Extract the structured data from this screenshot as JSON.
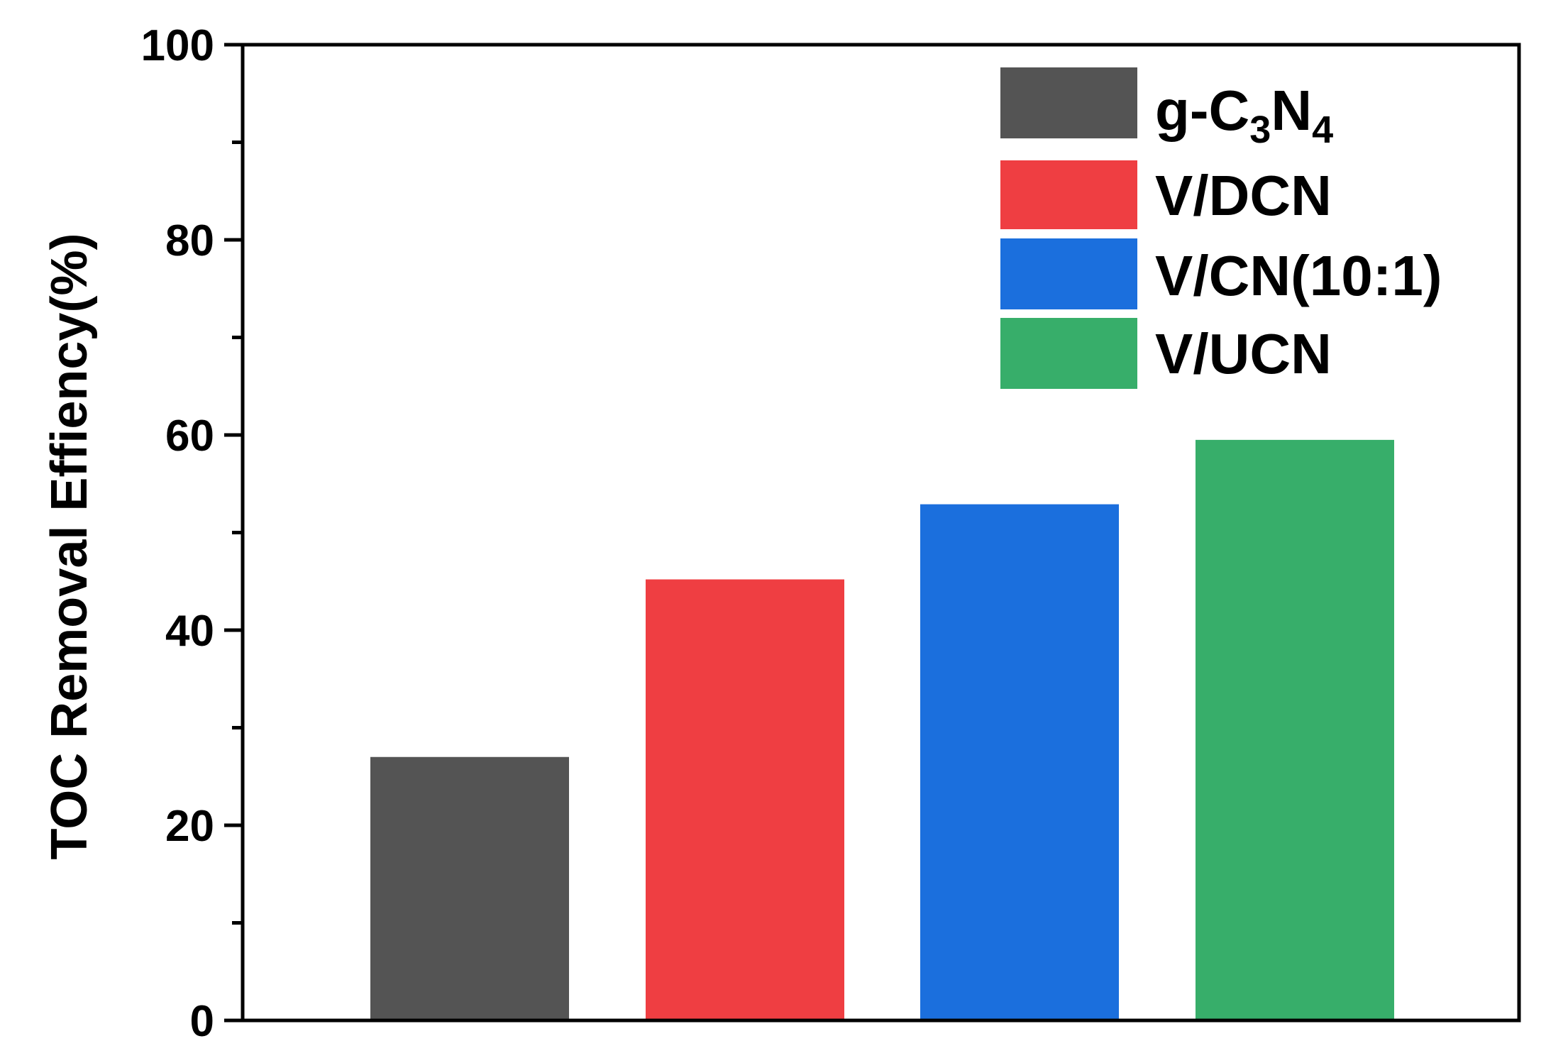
{
  "chart_data": {
    "type": "bar",
    "title": "",
    "xlabel": "",
    "ylabel": "TOC Removal Effiency(%)",
    "ylim": [
      0,
      100
    ],
    "yticks": [
      0,
      20,
      40,
      60,
      80,
      100
    ],
    "yticks_minor": [
      10,
      30,
      50,
      70,
      90
    ],
    "grid": false,
    "legend_position": "top-right",
    "series": [
      {
        "name": "g-C3N4",
        "label_parts": [
          [
            "g-C",
            ""
          ],
          [
            "3",
            "sub"
          ],
          [
            "N",
            ""
          ],
          [
            "4",
            "sub"
          ]
        ],
        "value": 27.0,
        "color": "#545454"
      },
      {
        "name": "V/DCN",
        "label_parts": [
          [
            "V/DCN",
            ""
          ]
        ],
        "value": 45.2,
        "color": "#EF3E42"
      },
      {
        "name": "V/CN(10:1)",
        "label_parts": [
          [
            "V/CN(10:1)",
            ""
          ]
        ],
        "value": 52.9,
        "color": "#1B6FDD"
      },
      {
        "name": "V/UCN",
        "label_parts": [
          [
            "V/UCN",
            ""
          ]
        ],
        "value": 59.5,
        "color": "#37AE6A"
      }
    ]
  }
}
